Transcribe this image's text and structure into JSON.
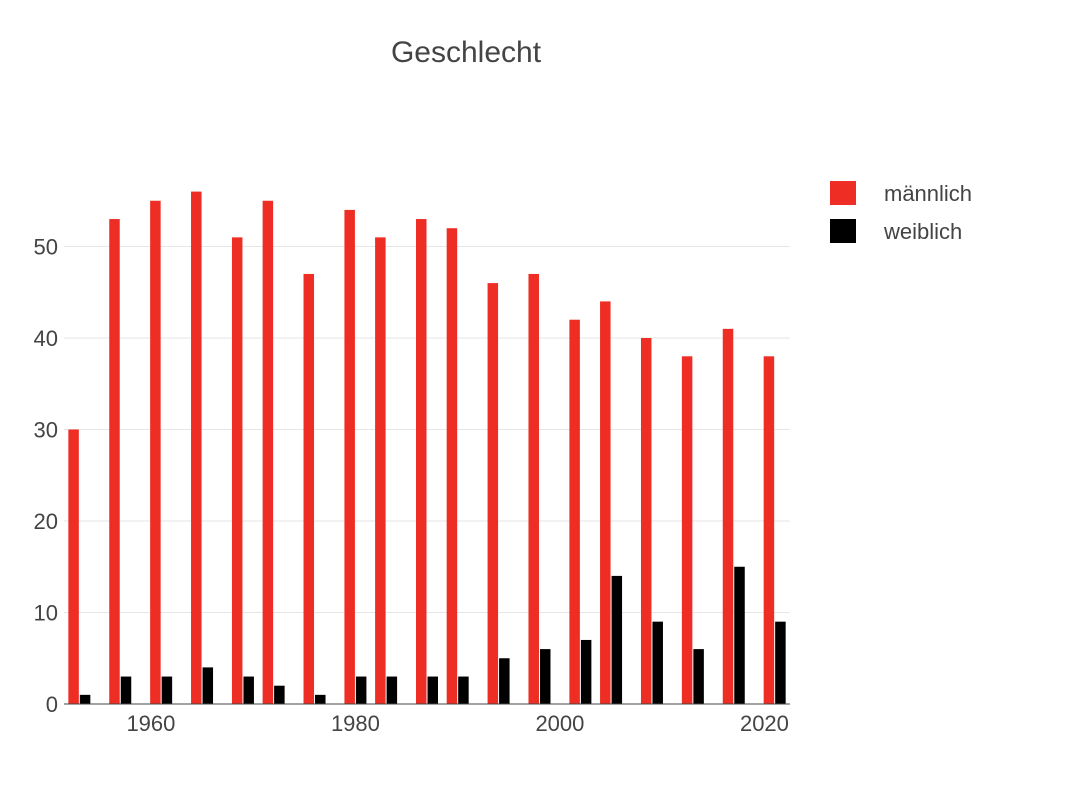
{
  "chart_data": {
    "type": "bar",
    "title": "Geschlecht",
    "xlabel": "",
    "ylabel": "",
    "x": [
      1953,
      1957,
      1961,
      1965,
      1969,
      1972,
      1976,
      1980,
      1983,
      1987,
      1990,
      1994,
      1998,
      2002,
      2005,
      2009,
      2013,
      2017,
      2021
    ],
    "series": [
      {
        "name": "männlich",
        "color": "#ee2e24",
        "values": [
          30,
          53,
          55,
          56,
          51,
          55,
          47,
          54,
          51,
          53,
          52,
          46,
          47,
          42,
          44,
          40,
          38,
          41,
          38
        ]
      },
      {
        "name": "weiblich",
        "color": "#000000",
        "values": [
          1,
          3,
          3,
          4,
          3,
          2,
          1,
          3,
          3,
          3,
          3,
          5,
          6,
          7,
          14,
          9,
          6,
          15,
          9
        ]
      }
    ],
    "xlim": [
      1951.5,
      2022.5
    ],
    "ylim": [
      0,
      60
    ],
    "xticks": [
      1960,
      1980,
      2000,
      2020
    ],
    "yticks": [
      0,
      10,
      20,
      30,
      40,
      50
    ],
    "grid": true,
    "legend_position": "top-right"
  }
}
